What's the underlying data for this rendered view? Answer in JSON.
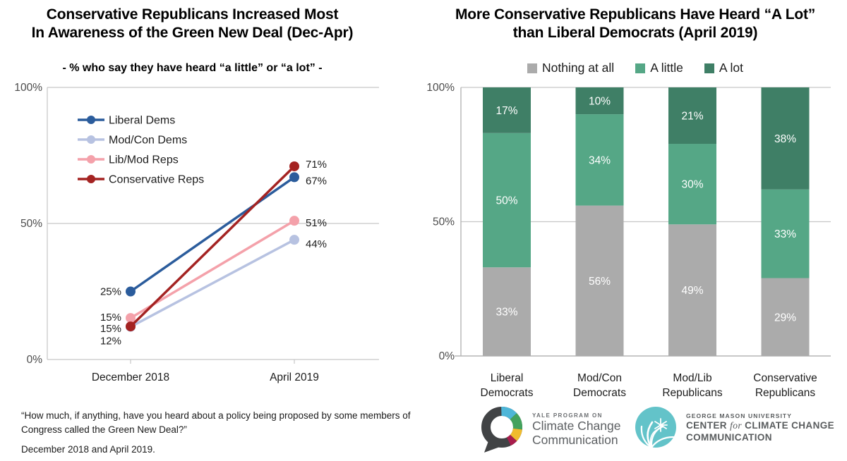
{
  "left_panel": {
    "title": "Conservative Republicans Increased Most\nIn Awareness of the Green New Deal (Dec-Apr)",
    "subtitle": "- % who say they have heard “a little” or “a lot” -",
    "footnote_question": "“How much, if anything, have you heard about a policy being proposed by some members of Congress called the Green New Deal?”",
    "footnote_dates": "December 2018 and April 2019."
  },
  "right_panel": {
    "title": "More Conservative Republicans Have Heard “A Lot”\nthan Liberal Democrats (April 2019)"
  },
  "chart_data": [
    {
      "type": "line",
      "title": "Conservative Republicans Increased Most In Awareness of the Green New Deal (Dec-Apr)",
      "subtitle": "% who say they have heard “a little” or “a lot”",
      "x": [
        "December 2018",
        "April 2019"
      ],
      "series": [
        {
          "name": "Liberal Dems",
          "color": "#2b5c9c",
          "values": [
            25,
            67
          ]
        },
        {
          "name": "Mod/Con Dems",
          "color": "#b7c2e1",
          "values": [
            12,
            44
          ]
        },
        {
          "name": "Lib/Mod Reps",
          "color": "#f4a1aa",
          "values": [
            15,
            51
          ]
        },
        {
          "name": "Conservative Reps",
          "color": "#a42322",
          "values": [
            15,
            71
          ]
        }
      ],
      "ylim": [
        0,
        100
      ],
      "yticks": [
        {
          "value": 0,
          "label": "0%"
        },
        {
          "value": 50,
          "label": "50%"
        },
        {
          "value": 100,
          "label": "100%"
        }
      ],
      "grid": "horizontal gridline at 50%; plot frame on top, left and bottom",
      "legend_position": "inside top-left",
      "point_labels": "every point labeled with its percent value"
    },
    {
      "type": "stacked-bar",
      "title": "More Conservative Republicans Have Heard “A Lot” than Liberal Democrats (April 2019)",
      "categories": [
        "Liberal\nDemocrats",
        "Mod/Con\nDemocrats",
        "Mod/Lib\nRepublicans",
        "Conservative\nRepublicans"
      ],
      "series": [
        {
          "name": "Nothing at all",
          "color": "#ababab",
          "values": [
            33,
            56,
            49,
            29
          ]
        },
        {
          "name": "A little",
          "color": "#55a786",
          "values": [
            50,
            34,
            30,
            33
          ]
        },
        {
          "name": "A lot",
          "color": "#3f7f66",
          "values": [
            17,
            10,
            21,
            38
          ]
        }
      ],
      "ylim": [
        0,
        100
      ],
      "yticks": [
        {
          "value": 0,
          "label": "0%"
        },
        {
          "value": 50,
          "label": "50%"
        },
        {
          "value": 100,
          "label": "100%"
        }
      ],
      "grid": "horizontal gridlines at 50% and 100%; left axis and bottom axis",
      "legend_position": "top center",
      "bar_labels": "white percent label centered in each segment"
    }
  ],
  "colors": {
    "axis_line": "#c6c6c6",
    "tick_text": "#4c4c4c",
    "label_text": "#1c1c1c",
    "bar_label_text": "#ffffff"
  },
  "logos": {
    "yale": {
      "kicker": "YALE PROGRAM ON",
      "line2": "Climate Change",
      "line3": "Communication",
      "ring_colors": [
        "#4eb6d8",
        "#44a25e",
        "#f0bc2e",
        "#a81d4c",
        "#414345"
      ]
    },
    "gmu": {
      "kicker": "GEORGE MASON UNIVERSITY",
      "line2_pre": "CENTER ",
      "line2_for": "for",
      "line2_post": " CLIMATE CHANGE",
      "line3": "COMMUNICATION",
      "mark_color": "#63c3c9"
    }
  }
}
